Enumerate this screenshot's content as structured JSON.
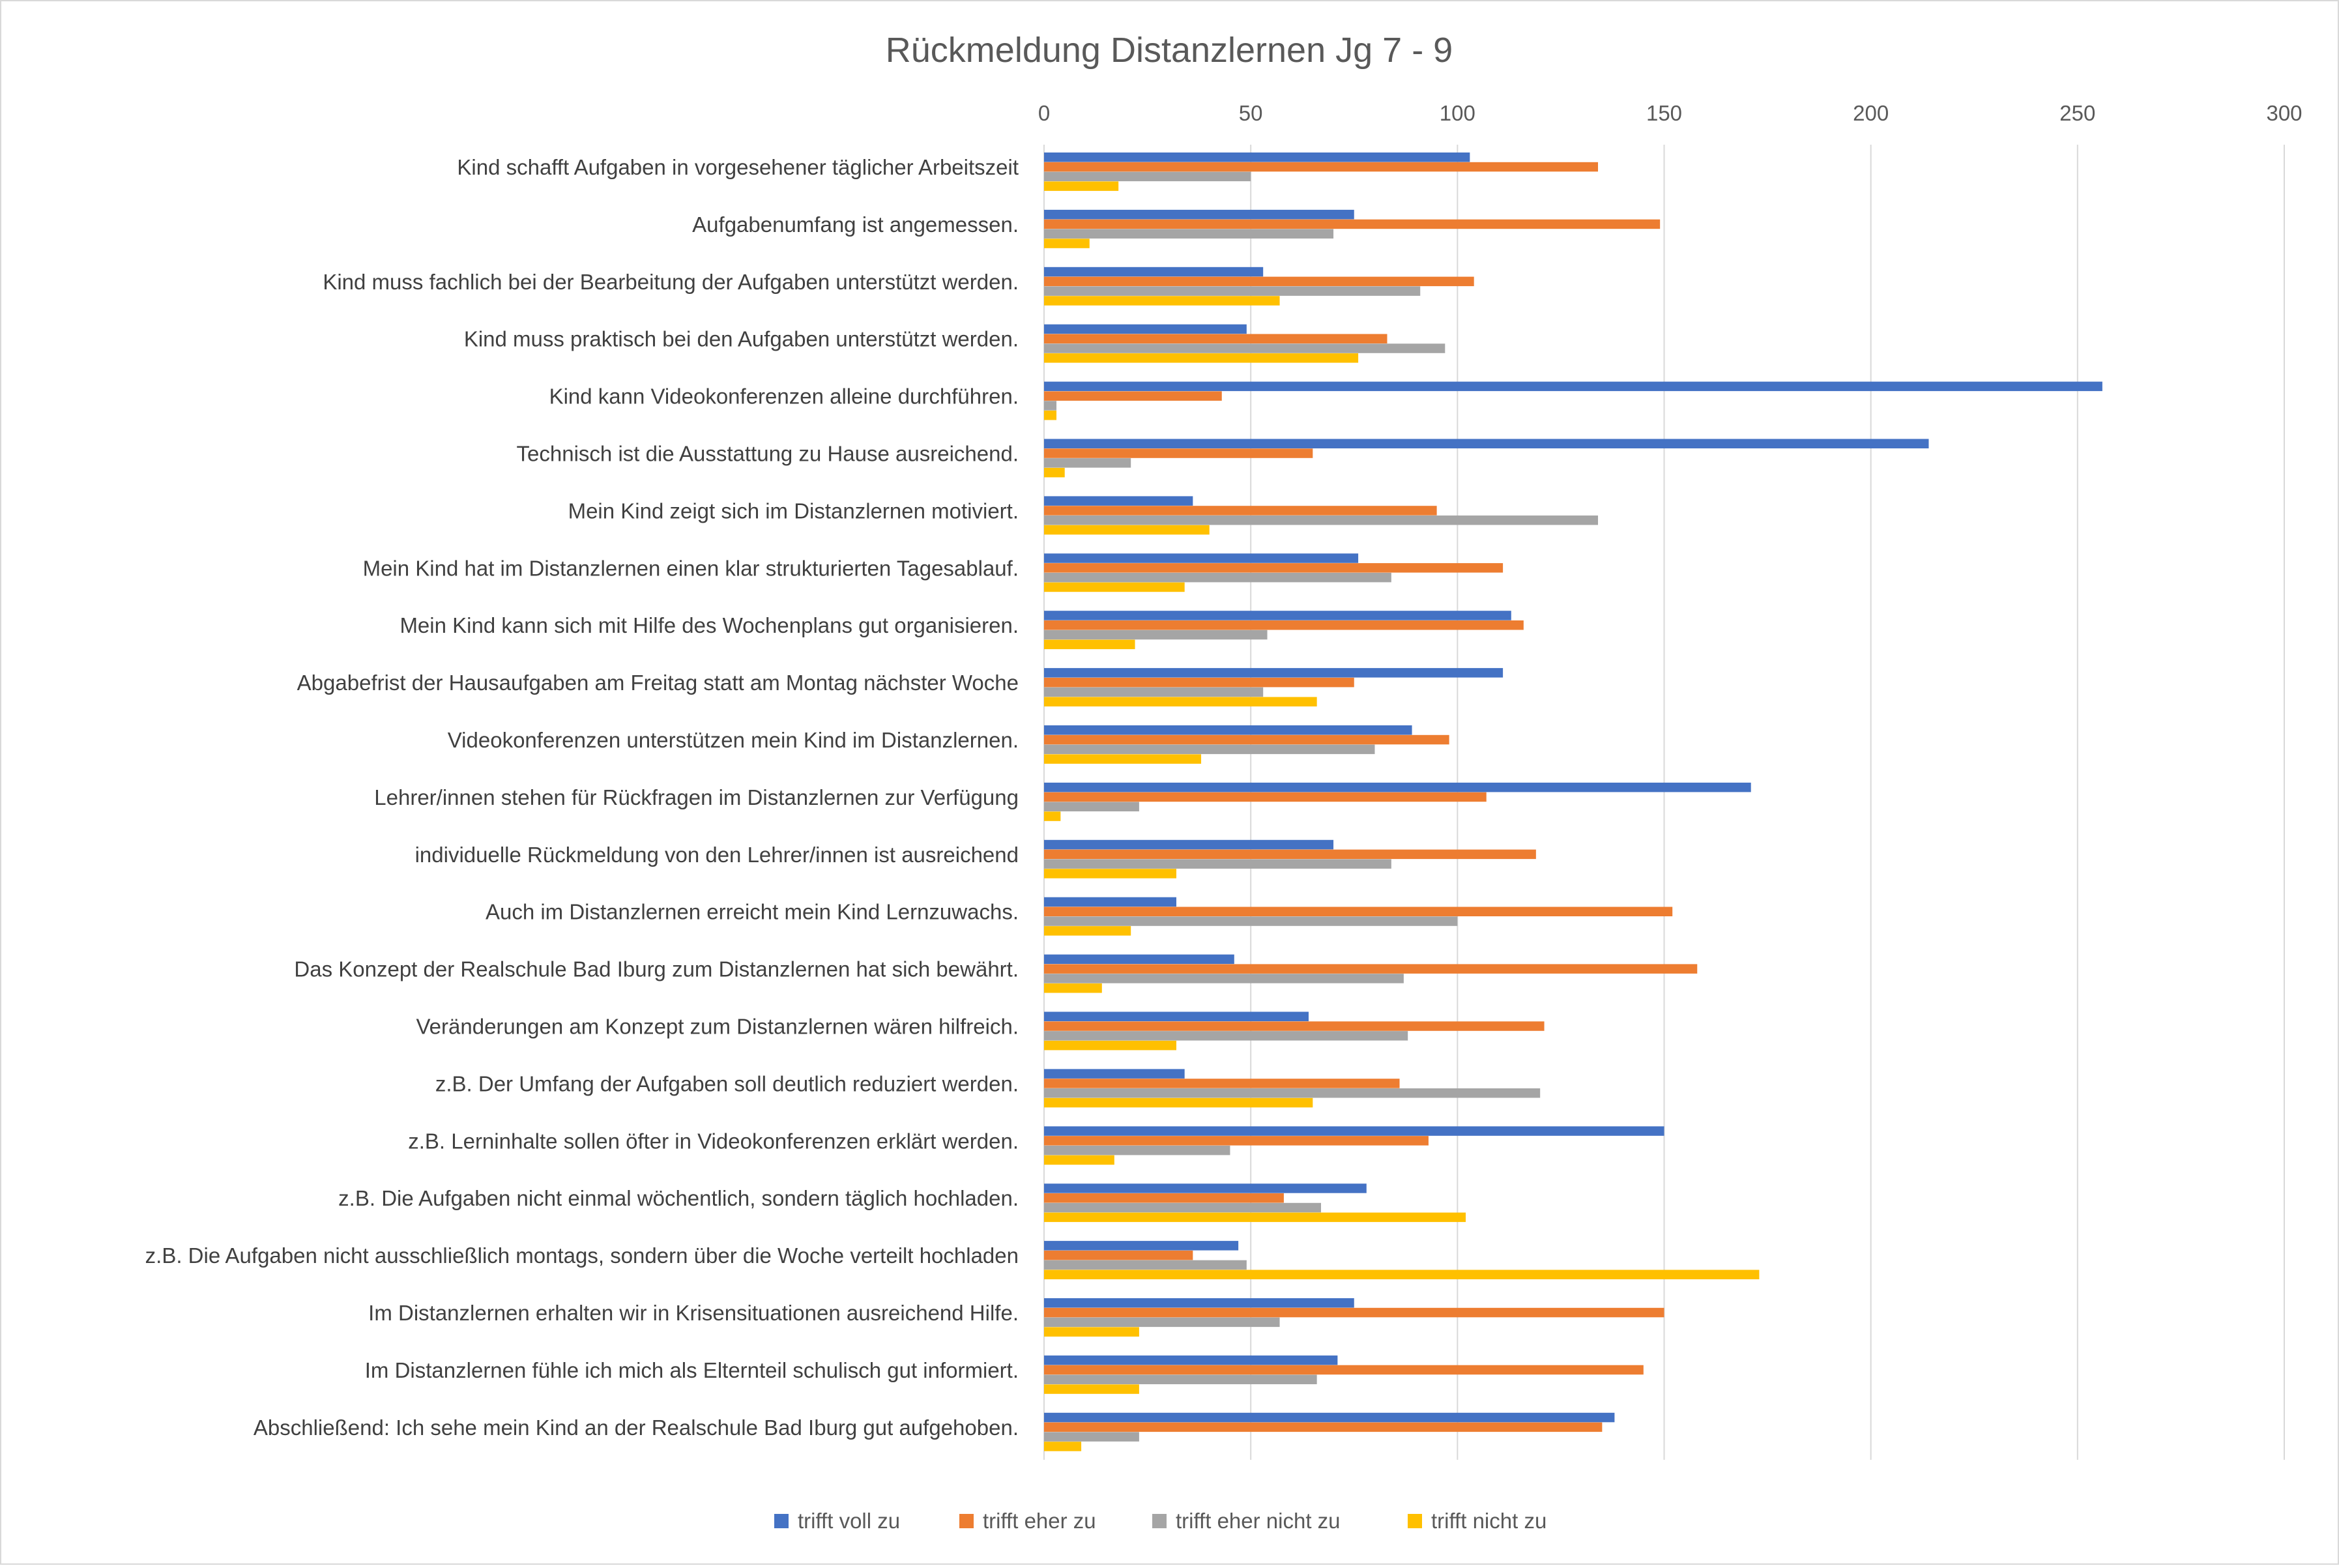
{
  "colors": {
    "trifft_voll_zu": "#4472C4",
    "trifft_eher_zu": "#ED7D31",
    "trifft_eher_nicht_zu": "#A5A5A5",
    "trifft_nicht_zu": "#FFC000",
    "gridline": "#D9D9D9",
    "frame": "#D9D9D9"
  },
  "chart_data": {
    "type": "bar",
    "orientation": "horizontal",
    "title": "Rückmeldung Distanzlernen Jg 7 - 9",
    "xlim": [
      0,
      300
    ],
    "x_ticks": [
      "0",
      "50",
      "100",
      "150",
      "200",
      "250",
      "300"
    ],
    "x_axis_position": "top",
    "grid": true,
    "legend_position": "bottom",
    "categories": [
      "Kind schafft Aufgaben in vorgesehener täglicher Arbeitszeit",
      "Aufgabenumfang ist angemessen.",
      "Kind muss fachlich bei der Bearbeitung der Aufgaben unterstützt werden.",
      "Kind muss praktisch bei den Aufgaben unterstützt werden.",
      "Kind kann Videokonferenzen alleine durchführen.",
      "Technisch ist die Ausstattung zu Hause ausreichend.",
      "Mein Kind zeigt sich im Distanzlernen motiviert.",
      "Mein Kind hat im Distanzlernen einen klar strukturierten Tagesablauf.",
      "Mein Kind kann sich mit Hilfe des Wochenplans gut organisieren.",
      "Abgabefrist der Hausaufgaben am Freitag statt am Montag nächster Woche",
      "Videokonferenzen unterstützen mein Kind im Distanzlernen.",
      "Lehrer/innen stehen für Rückfragen im Distanzlernen zur Verfügung",
      "individuelle Rückmeldung von den Lehrer/innen ist ausreichend",
      "Auch im Distanzlernen erreicht mein Kind Lernzuwachs.",
      "Das Konzept der Realschule Bad Iburg zum Distanzlernen hat sich bewährt.",
      "Veränderungen am Konzept zum Distanzlernen wären hilfreich.",
      "z.B. Der Umfang der Aufgaben soll deutlich reduziert werden.",
      "z.B. Lerninhalte sollen öfter in Videokonferenzen erklärt werden.",
      "z.B. Die Aufgaben nicht einmal wöchentlich, sondern täglich hochladen.",
      "z.B. Die Aufgaben nicht ausschließlich montags, sondern über die Woche verteilt hochladen",
      "Im Distanzlernen erhalten wir in Krisensituationen ausreichend Hilfe.",
      "Im Distanzlernen fühle ich mich als Elternteil schulisch gut informiert.",
      "Abschließend: Ich sehe mein Kind an der Realschule Bad Iburg gut aufgehoben."
    ],
    "series": [
      {
        "name": "trifft voll zu",
        "color": "#4472C4",
        "values": [
          103,
          75,
          53,
          49,
          256,
          214,
          36,
          76,
          113,
          111,
          89,
          171,
          70,
          32,
          46,
          64,
          34,
          150,
          78,
          47,
          75,
          71,
          138
        ]
      },
      {
        "name": "trifft eher zu",
        "color": "#ED7D31",
        "values": [
          134,
          149,
          104,
          83,
          43,
          65,
          95,
          111,
          116,
          75,
          98,
          107,
          119,
          152,
          158,
          121,
          86,
          93,
          58,
          36,
          150,
          145,
          135
        ]
      },
      {
        "name": "trifft eher nicht zu",
        "color": "#A5A5A5",
        "values": [
          50,
          70,
          91,
          97,
          3,
          21,
          134,
          84,
          54,
          53,
          80,
          23,
          84,
          100,
          87,
          88,
          120,
          45,
          67,
          49,
          57,
          66,
          23
        ]
      },
      {
        "name": "trifft nicht zu",
        "color": "#FFC000",
        "values": [
          18,
          11,
          57,
          76,
          3,
          5,
          40,
          34,
          22,
          66,
          38,
          4,
          32,
          21,
          14,
          32,
          65,
          17,
          102,
          173,
          23,
          23,
          9
        ]
      }
    ]
  }
}
